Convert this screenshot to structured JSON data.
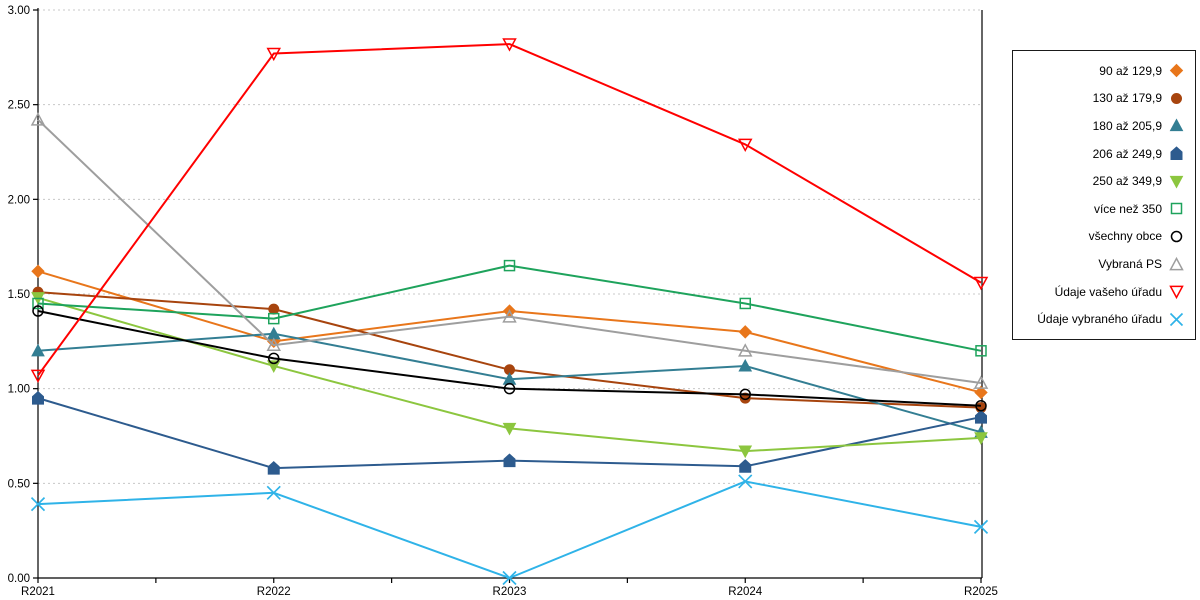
{
  "chart_data": {
    "type": "line",
    "title": "",
    "xlabel": "",
    "ylabel": "",
    "x_categories": [
      "R2021",
      "R2022",
      "R2023",
      "R2024",
      "R2025"
    ],
    "y_axis": {
      "min": 0,
      "max": 3,
      "step": 0.5,
      "tick_labels": [
        "0.00",
        "0.50",
        "1.00",
        "1.50",
        "2.00",
        "2.50",
        "3.00"
      ]
    },
    "grid": {
      "horizontal": true,
      "style": "dashed",
      "color": "#C8C8C8"
    },
    "axis_color": "#000000",
    "legend": {
      "position": "right",
      "border": true
    },
    "series": [
      {
        "name": "90 až 129,9",
        "marker": "diamond",
        "marker_style": "filled",
        "color": "#E8761B",
        "values": [
          1.62,
          1.25,
          1.41,
          1.3,
          0.98
        ]
      },
      {
        "name": "130 až 179,9",
        "marker": "circle",
        "marker_style": "filled",
        "color": "#A7440E",
        "values": [
          1.51,
          1.42,
          1.1,
          0.95,
          0.9
        ]
      },
      {
        "name": "180 až 205,9",
        "marker": "triangle-up",
        "marker_style": "filled",
        "color": "#337E93",
        "values": [
          1.2,
          1.29,
          1.05,
          1.12,
          0.77
        ]
      },
      {
        "name": "206 až 249,9",
        "marker": "pentagon",
        "marker_style": "filled",
        "color": "#2D5B8E",
        "values": [
          0.95,
          0.58,
          0.62,
          0.59,
          0.85
        ]
      },
      {
        "name": "250 až 349,9",
        "marker": "triangle-down",
        "marker_style": "filled",
        "color": "#8CC63F",
        "values": [
          1.48,
          1.12,
          0.79,
          0.67,
          0.74
        ]
      },
      {
        "name": "více než 350",
        "marker": "square",
        "marker_style": "open",
        "color": "#1EA35C",
        "values": [
          1.45,
          1.37,
          1.65,
          1.45,
          1.2
        ]
      },
      {
        "name": "všechny obce",
        "marker": "circle",
        "marker_style": "open",
        "color": "#000000",
        "values": [
          1.41,
          1.16,
          1.0,
          0.97,
          0.91
        ]
      },
      {
        "name": "Vybraná PS",
        "marker": "triangle-up",
        "marker_style": "open",
        "color": "#9E9E9E",
        "values": [
          2.42,
          1.23,
          1.38,
          1.2,
          1.03
        ]
      },
      {
        "name": "Údaje vašeho úřadu",
        "marker": "triangle-down",
        "marker_style": "open",
        "color": "#FF0000",
        "values": [
          1.07,
          2.77,
          2.82,
          2.29,
          1.56
        ]
      },
      {
        "name": "Údaje vybraného úřadu",
        "marker": "x",
        "marker_style": "open",
        "color": "#2FB3E8",
        "values": [
          0.39,
          0.45,
          0.0,
          0.51,
          0.27
        ]
      }
    ]
  }
}
